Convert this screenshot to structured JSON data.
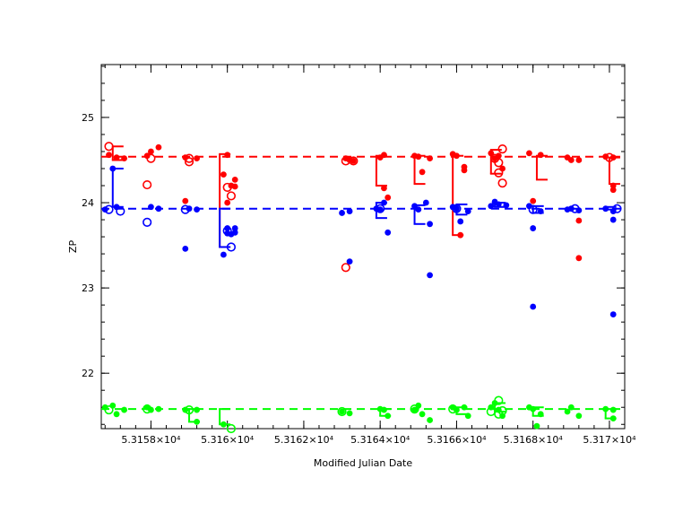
{
  "chart_data": {
    "type": "scatter",
    "xlabel": "Modified Julian Date",
    "ylabel": "ZP",
    "xlim": [
      53156.7,
      53170.4
    ],
    "ylim": [
      21.35,
      25.62
    ],
    "grid": false,
    "x_ticks": [
      {
        "value": 53158,
        "label": "5.3158×10⁴"
      },
      {
        "value": 53160,
        "label": "5.316×10⁴"
      },
      {
        "value": 53162,
        "label": "5.3162×10⁴"
      },
      {
        "value": 53164,
        "label": "5.3164×10⁴"
      },
      {
        "value": 53166,
        "label": "5.3166×10⁴"
      },
      {
        "value": 53168,
        "label": "5.3168×10⁴"
      },
      {
        "value": 53170,
        "label": "5.317×10⁴"
      }
    ],
    "y_ticks": [
      {
        "value": 22,
        "label": "22"
      },
      {
        "value": 23,
        "label": "23"
      },
      {
        "value": 24,
        "label": "24"
      },
      {
        "value": 25,
        "label": "25"
      }
    ],
    "series": [
      {
        "color": "#ff0000",
        "reference": 24.54,
        "filled": [
          [
            53156.9,
            24.56
          ],
          [
            53157.1,
            24.53
          ],
          [
            53157.3,
            24.52
          ],
          [
            53157.9,
            24.55
          ],
          [
            53158.0,
            24.6
          ],
          [
            53158.2,
            24.65
          ],
          [
            53158.9,
            24.53
          ],
          [
            53158.9,
            24.02
          ],
          [
            53159.2,
            24.52
          ],
          [
            53159.9,
            24.33
          ],
          [
            53160.0,
            24.0
          ],
          [
            53160.0,
            24.56
          ],
          [
            53160.1,
            24.2
          ],
          [
            53160.2,
            24.27
          ],
          [
            53160.2,
            24.19
          ],
          [
            53163.1,
            24.52
          ],
          [
            53163.2,
            24.5
          ],
          [
            53163.3,
            24.49
          ],
          [
            53164.0,
            24.53
          ],
          [
            53164.1,
            24.56
          ],
          [
            53164.1,
            24.17
          ],
          [
            53164.2,
            24.06
          ],
          [
            53164.9,
            24.55
          ],
          [
            53165.0,
            24.54
          ],
          [
            53165.1,
            24.36
          ],
          [
            53165.3,
            24.52
          ],
          [
            53165.9,
            24.57
          ],
          [
            53166.0,
            24.55
          ],
          [
            53166.1,
            23.62
          ],
          [
            53166.2,
            24.38
          ],
          [
            53166.2,
            24.42
          ],
          [
            53166.9,
            24.58
          ],
          [
            53167.0,
            24.52
          ],
          [
            53167.1,
            24.55
          ],
          [
            53167.2,
            24.4
          ],
          [
            53167.9,
            24.58
          ],
          [
            53168.0,
            24.02
          ],
          [
            53168.2,
            24.56
          ],
          [
            53168.9,
            24.53
          ],
          [
            53169.0,
            24.5
          ],
          [
            53169.2,
            24.5
          ],
          [
            53169.2,
            23.79
          ],
          [
            53169.2,
            23.35
          ],
          [
            53169.9,
            24.54
          ],
          [
            53170.1,
            24.53
          ],
          [
            53170.1,
            24.2
          ],
          [
            53170.1,
            24.15
          ]
        ],
        "open": [
          [
            53156.9,
            24.66
          ],
          [
            53157.9,
            24.21
          ],
          [
            53158.0,
            24.52
          ],
          [
            53159.0,
            24.52
          ],
          [
            53159.0,
            24.48
          ],
          [
            53160.0,
            24.18
          ],
          [
            53160.1,
            24.08
          ],
          [
            53163.1,
            24.49
          ],
          [
            53163.3,
            24.49
          ],
          [
            53163.1,
            23.24
          ],
          [
            53167.0,
            24.52
          ],
          [
            53167.1,
            24.47
          ],
          [
            53167.2,
            24.63
          ],
          [
            53167.2,
            24.23
          ],
          [
            53167.1,
            24.35
          ],
          [
            53170.0,
            24.53
          ]
        ],
        "error_bars": [
          [
            53157.0,
            24.5,
            24.66
          ],
          [
            53159.8,
            23.48,
            24.57
          ],
          [
            53163.9,
            24.2,
            24.55
          ],
          [
            53164.9,
            24.22,
            24.55
          ],
          [
            53165.9,
            23.62,
            24.55
          ],
          [
            53166.9,
            24.34,
            24.62
          ],
          [
            53168.1,
            24.27,
            24.55
          ],
          [
            53170.0,
            24.22,
            24.53
          ]
        ]
      },
      {
        "color": "#0000ff",
        "reference": 23.93,
        "filled": [
          [
            53156.8,
            23.92
          ],
          [
            53157.0,
            24.4
          ],
          [
            53157.1,
            23.95
          ],
          [
            53158.0,
            23.95
          ],
          [
            53158.2,
            23.93
          ],
          [
            53158.9,
            23.46
          ],
          [
            53159.0,
            23.93
          ],
          [
            53159.2,
            23.92
          ],
          [
            53159.9,
            23.39
          ],
          [
            53160.0,
            23.7
          ],
          [
            53160.0,
            23.64
          ],
          [
            53160.1,
            23.63
          ],
          [
            53160.2,
            23.7
          ],
          [
            53160.2,
            23.65
          ],
          [
            53163.0,
            23.88
          ],
          [
            53163.2,
            23.9
          ],
          [
            53163.2,
            23.31
          ],
          [
            53163.9,
            23.93
          ],
          [
            53164.0,
            23.92
          ],
          [
            53164.1,
            24.0
          ],
          [
            53164.2,
            23.65
          ],
          [
            53164.9,
            23.96
          ],
          [
            53165.0,
            23.92
          ],
          [
            53165.2,
            24.0
          ],
          [
            53165.3,
            23.15
          ],
          [
            53165.3,
            23.75
          ],
          [
            53165.9,
            23.95
          ],
          [
            53166.0,
            23.93
          ],
          [
            53166.1,
            23.78
          ],
          [
            53166.3,
            23.9
          ],
          [
            53166.9,
            23.96
          ],
          [
            53167.0,
            24.01
          ],
          [
            53167.1,
            23.98
          ],
          [
            53167.3,
            23.97
          ],
          [
            53167.9,
            23.96
          ],
          [
            53168.0,
            23.7
          ],
          [
            53168.0,
            22.78
          ],
          [
            53168.2,
            23.9
          ],
          [
            53168.9,
            23.92
          ],
          [
            53169.0,
            23.93
          ],
          [
            53169.2,
            23.91
          ],
          [
            53169.9,
            23.93
          ],
          [
            53170.1,
            23.9
          ],
          [
            53170.1,
            23.8
          ],
          [
            53170.1,
            22.69
          ]
        ],
        "open": [
          [
            53156.9,
            23.92
          ],
          [
            53157.2,
            23.9
          ],
          [
            53157.9,
            23.77
          ],
          [
            53158.9,
            23.92
          ],
          [
            53160.0,
            23.67
          ],
          [
            53160.1,
            23.48
          ],
          [
            53164.0,
            23.93
          ],
          [
            53166.0,
            23.93
          ],
          [
            53168.0,
            23.92
          ],
          [
            53169.1,
            23.93
          ],
          [
            53170.2,
            23.93
          ]
        ],
        "error_bars": [
          [
            53157.0,
            23.95,
            24.4
          ],
          [
            53159.8,
            23.48,
            23.93
          ],
          [
            53163.9,
            23.82,
            24.0
          ],
          [
            53164.9,
            23.75,
            23.97
          ],
          [
            53166.0,
            23.86,
            23.98
          ],
          [
            53167.0,
            23.95,
            24.0
          ],
          [
            53168.0,
            23.88,
            23.96
          ],
          [
            53169.9,
            23.92,
            23.95
          ]
        ]
      },
      {
        "color": "#00ff00",
        "reference": 21.58,
        "filled": [
          [
            53156.8,
            21.6
          ],
          [
            53157.0,
            21.62
          ],
          [
            53157.1,
            21.52
          ],
          [
            53157.3,
            21.57
          ],
          [
            53157.9,
            21.6
          ],
          [
            53158.0,
            21.57
          ],
          [
            53158.2,
            21.58
          ],
          [
            53158.9,
            21.57
          ],
          [
            53159.2,
            21.57
          ],
          [
            53159.2,
            21.43
          ],
          [
            53159.9,
            21.4
          ],
          [
            53163.0,
            21.55
          ],
          [
            53163.2,
            21.53
          ],
          [
            53164.0,
            21.58
          ],
          [
            53164.1,
            21.57
          ],
          [
            53164.2,
            21.5
          ],
          [
            53164.9,
            21.57
          ],
          [
            53165.0,
            21.62
          ],
          [
            53165.1,
            21.52
          ],
          [
            53165.3,
            21.45
          ],
          [
            53165.9,
            21.6
          ],
          [
            53166.0,
            21.57
          ],
          [
            53166.2,
            21.6
          ],
          [
            53166.3,
            21.5
          ],
          [
            53166.9,
            21.6
          ],
          [
            53167.0,
            21.65
          ],
          [
            53167.1,
            21.57
          ],
          [
            53167.2,
            21.5
          ],
          [
            53167.9,
            21.6
          ],
          [
            53168.0,
            21.58
          ],
          [
            53168.1,
            21.38
          ],
          [
            53168.2,
            21.52
          ],
          [
            53168.9,
            21.55
          ],
          [
            53169.0,
            21.6
          ],
          [
            53169.2,
            21.5
          ],
          [
            53169.9,
            21.58
          ],
          [
            53170.1,
            21.57
          ],
          [
            53170.1,
            21.47
          ]
        ],
        "open": [
          [
            53156.9,
            21.57
          ],
          [
            53157.9,
            21.58
          ],
          [
            53159.0,
            21.57
          ],
          [
            53160.1,
            21.35
          ],
          [
            53163.0,
            21.55
          ],
          [
            53164.9,
            21.58
          ],
          [
            53165.9,
            21.58
          ],
          [
            53166.9,
            21.55
          ],
          [
            53167.1,
            21.52
          ],
          [
            53167.1,
            21.68
          ],
          [
            53167.2,
            21.56
          ]
        ],
        "error_bars": [
          [
            53159.0,
            21.43,
            21.58
          ],
          [
            53159.8,
            21.4,
            21.58
          ],
          [
            53164.0,
            21.5,
            21.58
          ],
          [
            53166.0,
            21.52,
            21.6
          ],
          [
            53167.0,
            21.55,
            21.65
          ],
          [
            53168.0,
            21.5,
            21.6
          ],
          [
            53169.9,
            21.47,
            21.58
          ]
        ]
      }
    ]
  }
}
